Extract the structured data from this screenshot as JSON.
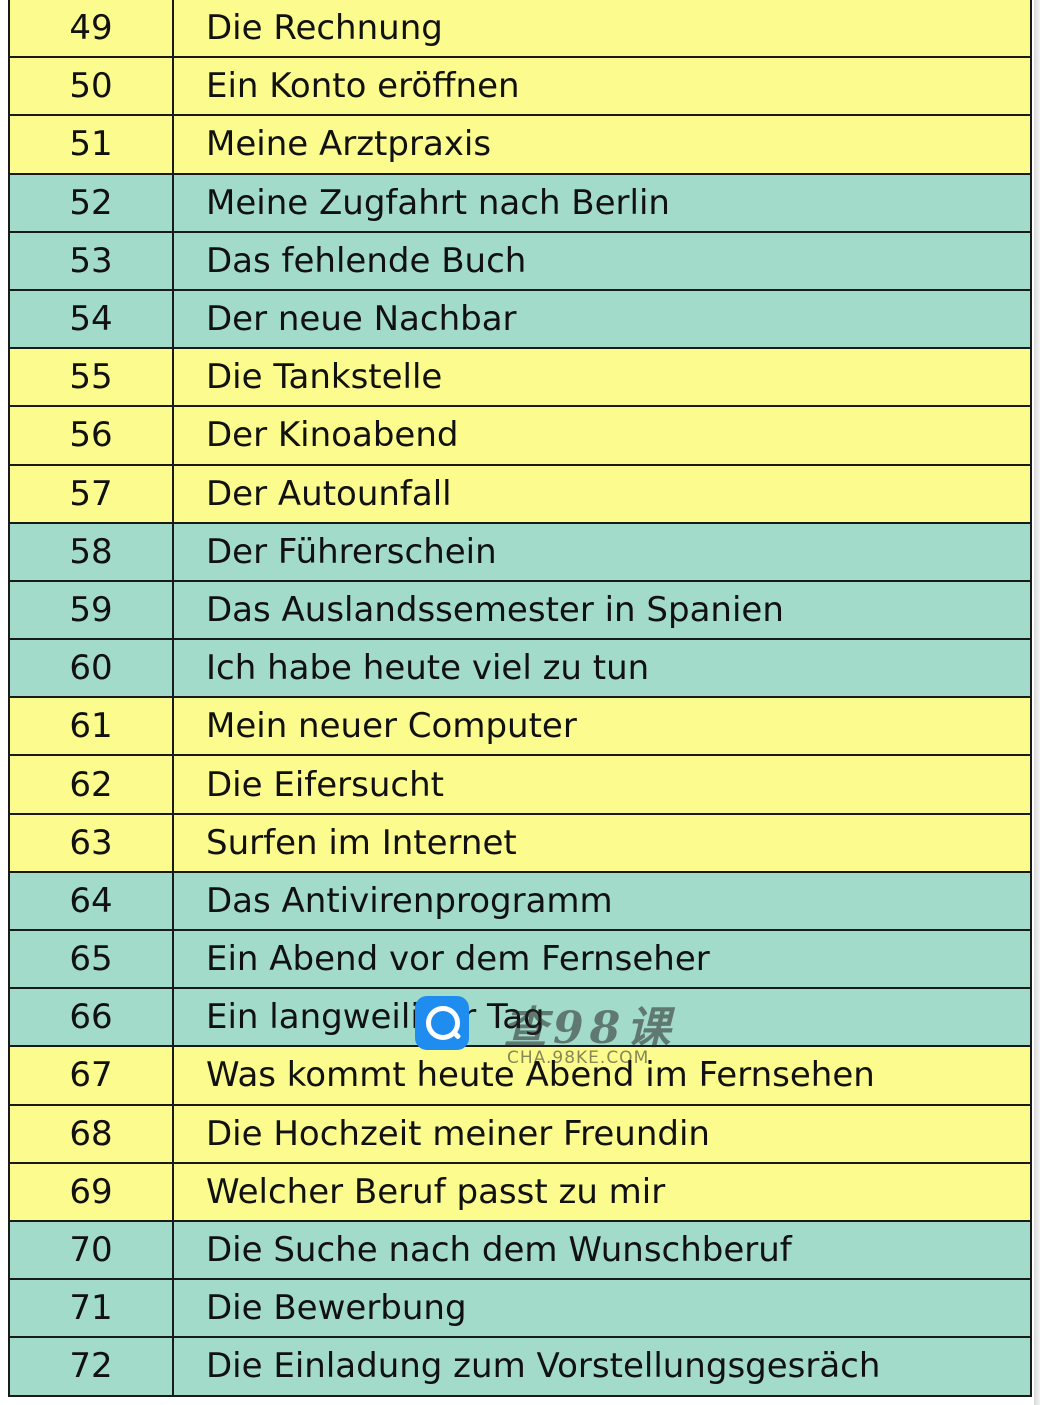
{
  "rows": [
    {
      "num": "49",
      "title": "Die Rechnung",
      "color": "yellow"
    },
    {
      "num": "50",
      "title": "Ein Konto eröffnen",
      "color": "yellow"
    },
    {
      "num": "51",
      "title": "Meine Arztpraxis",
      "color": "yellow"
    },
    {
      "num": "52",
      "title": "Meine Zugfahrt nach Berlin",
      "color": "teal"
    },
    {
      "num": "53",
      "title": "Das fehlende Buch",
      "color": "teal"
    },
    {
      "num": "54",
      "title": "Der neue Nachbar",
      "color": "teal"
    },
    {
      "num": "55",
      "title": "Die Tankstelle",
      "color": "yellow"
    },
    {
      "num": "56",
      "title": "Der Kinoabend",
      "color": "yellow"
    },
    {
      "num": "57",
      "title": "Der Autounfall",
      "color": "yellow"
    },
    {
      "num": "58",
      "title": "Der Führerschein",
      "color": "teal"
    },
    {
      "num": "59",
      "title": "Das Auslandssemester in Spanien",
      "color": "teal"
    },
    {
      "num": "60",
      "title": "Ich habe heute viel zu tun",
      "color": "teal"
    },
    {
      "num": "61",
      "title": "Mein neuer Computer",
      "color": "yellow"
    },
    {
      "num": "62",
      "title": "Die Eifersucht",
      "color": "yellow"
    },
    {
      "num": "63",
      "title": "Surfen im Internet",
      "color": "yellow"
    },
    {
      "num": "64",
      "title": "Das Antivirenprogramm",
      "color": "teal"
    },
    {
      "num": "65",
      "title": "Ein Abend vor dem Fernseher",
      "color": "teal"
    },
    {
      "num": "66",
      "title": "Ein langweiliger Tag",
      "color": "teal"
    },
    {
      "num": "67",
      "title": "Was kommt heute Abend im Fernsehen",
      "color": "yellow"
    },
    {
      "num": "68",
      "title": "Die Hochzeit meiner Freundin",
      "color": "yellow"
    },
    {
      "num": "69",
      "title": "Welcher Beruf passt zu mir",
      "color": "yellow"
    },
    {
      "num": "70",
      "title": "Die Suche nach dem Wunschberuf",
      "color": "teal"
    },
    {
      "num": "71",
      "title": "Die Bewerbung",
      "color": "teal"
    },
    {
      "num": "72",
      "title": "Die Einladung zum Vorstellungsgesräch",
      "color": "teal"
    }
  ],
  "colors": {
    "yellow": "#fbfb8e",
    "teal": "#a3dbcb"
  },
  "watermark": {
    "brand": "查98课",
    "url": "CHA.98KE.COM",
    "icon": "search-magnifier-icon"
  }
}
